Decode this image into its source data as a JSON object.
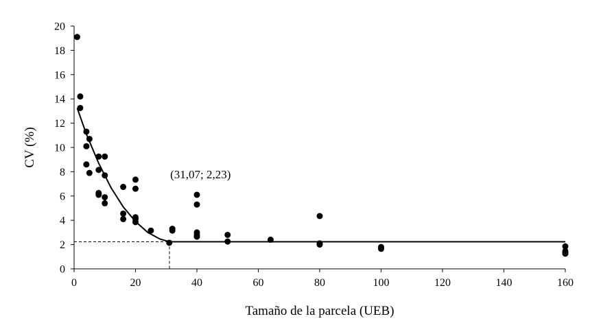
{
  "chart_data": {
    "type": "scatter",
    "title": "",
    "xlabel": "Tamaño de la parcela (UEB)",
    "ylabel": "CV (%)",
    "xlim": [
      0,
      160
    ],
    "ylim": [
      0,
      20
    ],
    "xticks": [
      0,
      20,
      40,
      60,
      80,
      100,
      120,
      140,
      160
    ],
    "yticks": [
      0,
      2,
      4,
      6,
      8,
      10,
      12,
      14,
      16,
      18,
      20
    ],
    "grid": false,
    "legend": "none",
    "series": [
      {
        "points": [
          [
            1,
            19.1
          ],
          [
            2,
            14.2
          ],
          [
            2,
            13.25
          ],
          [
            4,
            11.3
          ],
          [
            4,
            10.1
          ],
          [
            4,
            8.6
          ],
          [
            5,
            10.7
          ],
          [
            5,
            7.9
          ],
          [
            8,
            9.25
          ],
          [
            8,
            8.15
          ],
          [
            8,
            6.25
          ],
          [
            8,
            6.1
          ],
          [
            10,
            9.25
          ],
          [
            10,
            7.7
          ],
          [
            10,
            5.9
          ],
          [
            10,
            5.4
          ],
          [
            16,
            6.75
          ],
          [
            16,
            4.55
          ],
          [
            16,
            4.1
          ],
          [
            20,
            7.35
          ],
          [
            20,
            6.6
          ],
          [
            20,
            4.25
          ],
          [
            20,
            4.1
          ],
          [
            20,
            3.85
          ],
          [
            25,
            3.15
          ],
          [
            31,
            2.15
          ],
          [
            32,
            3.3
          ],
          [
            32,
            3.15
          ],
          [
            40,
            6.1
          ],
          [
            40,
            5.3
          ],
          [
            40,
            3.0
          ],
          [
            40,
            2.8
          ],
          [
            40,
            2.65
          ],
          [
            50,
            2.8
          ],
          [
            50,
            2.25
          ],
          [
            64,
            2.4
          ],
          [
            80,
            4.35
          ],
          [
            80,
            2.1
          ],
          [
            80,
            2.0
          ],
          [
            100,
            1.8
          ],
          [
            100,
            1.65
          ],
          [
            160,
            1.85
          ],
          [
            160,
            1.45
          ],
          [
            160,
            1.35
          ],
          [
            160,
            1.25
          ]
        ]
      }
    ],
    "fit": {
      "type": "linear-plateau",
      "x": [
        1,
        4,
        8,
        12,
        16,
        20,
        24,
        28,
        31.07,
        160
      ],
      "y": [
        13.25,
        11.1,
        8.7,
        6.7,
        5.1,
        3.9,
        3.0,
        2.45,
        2.23,
        2.23
      ]
    },
    "reference_point": [
      31.07,
      2.23
    ],
    "annotation": "(31,07; 2,23)",
    "colors": {
      "marker": "#000000",
      "line": "#000000"
    }
  }
}
